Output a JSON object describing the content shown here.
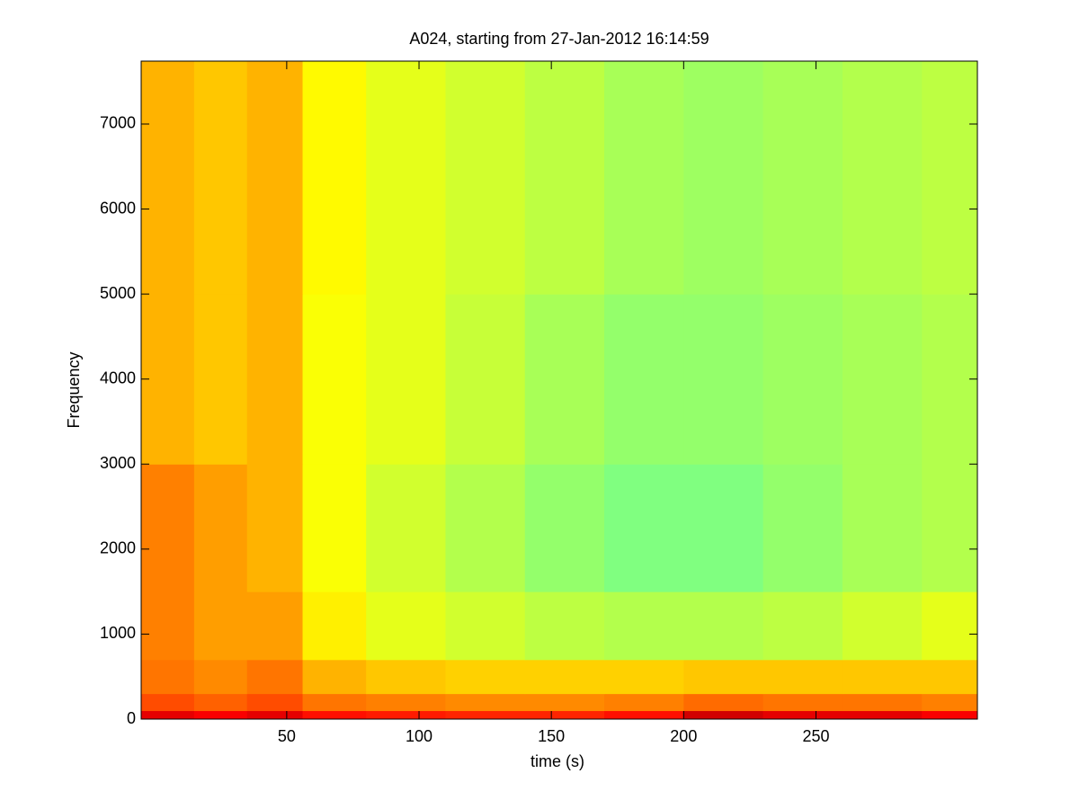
{
  "chart_data": {
    "type": "spectrogram",
    "title": "A024, starting from 27-Jan-2012 16:14:59",
    "x_label": "time (s)",
    "y_label": "Frequency",
    "x_bins": [
      -5,
      15,
      35,
      56,
      80,
      110,
      140,
      170,
      200,
      230,
      260,
      290,
      311
    ],
    "y_bins": [
      0,
      100,
      300,
      700,
      1500,
      3000,
      5000,
      7740
    ],
    "values": [
      [
        0.9,
        0.88,
        0.9,
        0.86,
        0.85,
        0.84,
        0.84,
        0.86,
        0.92,
        0.9,
        0.9,
        0.88
      ],
      [
        0.8,
        0.78,
        0.8,
        0.76,
        0.75,
        0.74,
        0.74,
        0.75,
        0.77,
        0.76,
        0.76,
        0.75
      ],
      [
        0.76,
        0.74,
        0.76,
        0.7,
        0.68,
        0.67,
        0.67,
        0.67,
        0.68,
        0.68,
        0.68,
        0.68
      ],
      [
        0.75,
        0.72,
        0.72,
        0.64,
        0.6,
        0.58,
        0.56,
        0.55,
        0.55,
        0.56,
        0.58,
        0.6
      ],
      [
        0.75,
        0.72,
        0.7,
        0.62,
        0.58,
        0.55,
        0.52,
        0.5,
        0.5,
        0.52,
        0.54,
        0.55
      ],
      [
        0.7,
        0.68,
        0.7,
        0.62,
        0.6,
        0.57,
        0.54,
        0.52,
        0.52,
        0.53,
        0.54,
        0.55
      ],
      [
        0.7,
        0.68,
        0.7,
        0.63,
        0.6,
        0.58,
        0.56,
        0.54,
        0.53,
        0.54,
        0.55,
        0.56
      ]
    ],
    "clim": [
      0,
      1
    ],
    "colormap": "jet",
    "xlim": [
      -5,
      311
    ],
    "ylim": [
      0,
      7740
    ],
    "xticks": [
      50,
      100,
      150,
      200,
      250
    ],
    "yticks": [
      0,
      1000,
      2000,
      3000,
      4000,
      5000,
      6000,
      7000
    ]
  }
}
